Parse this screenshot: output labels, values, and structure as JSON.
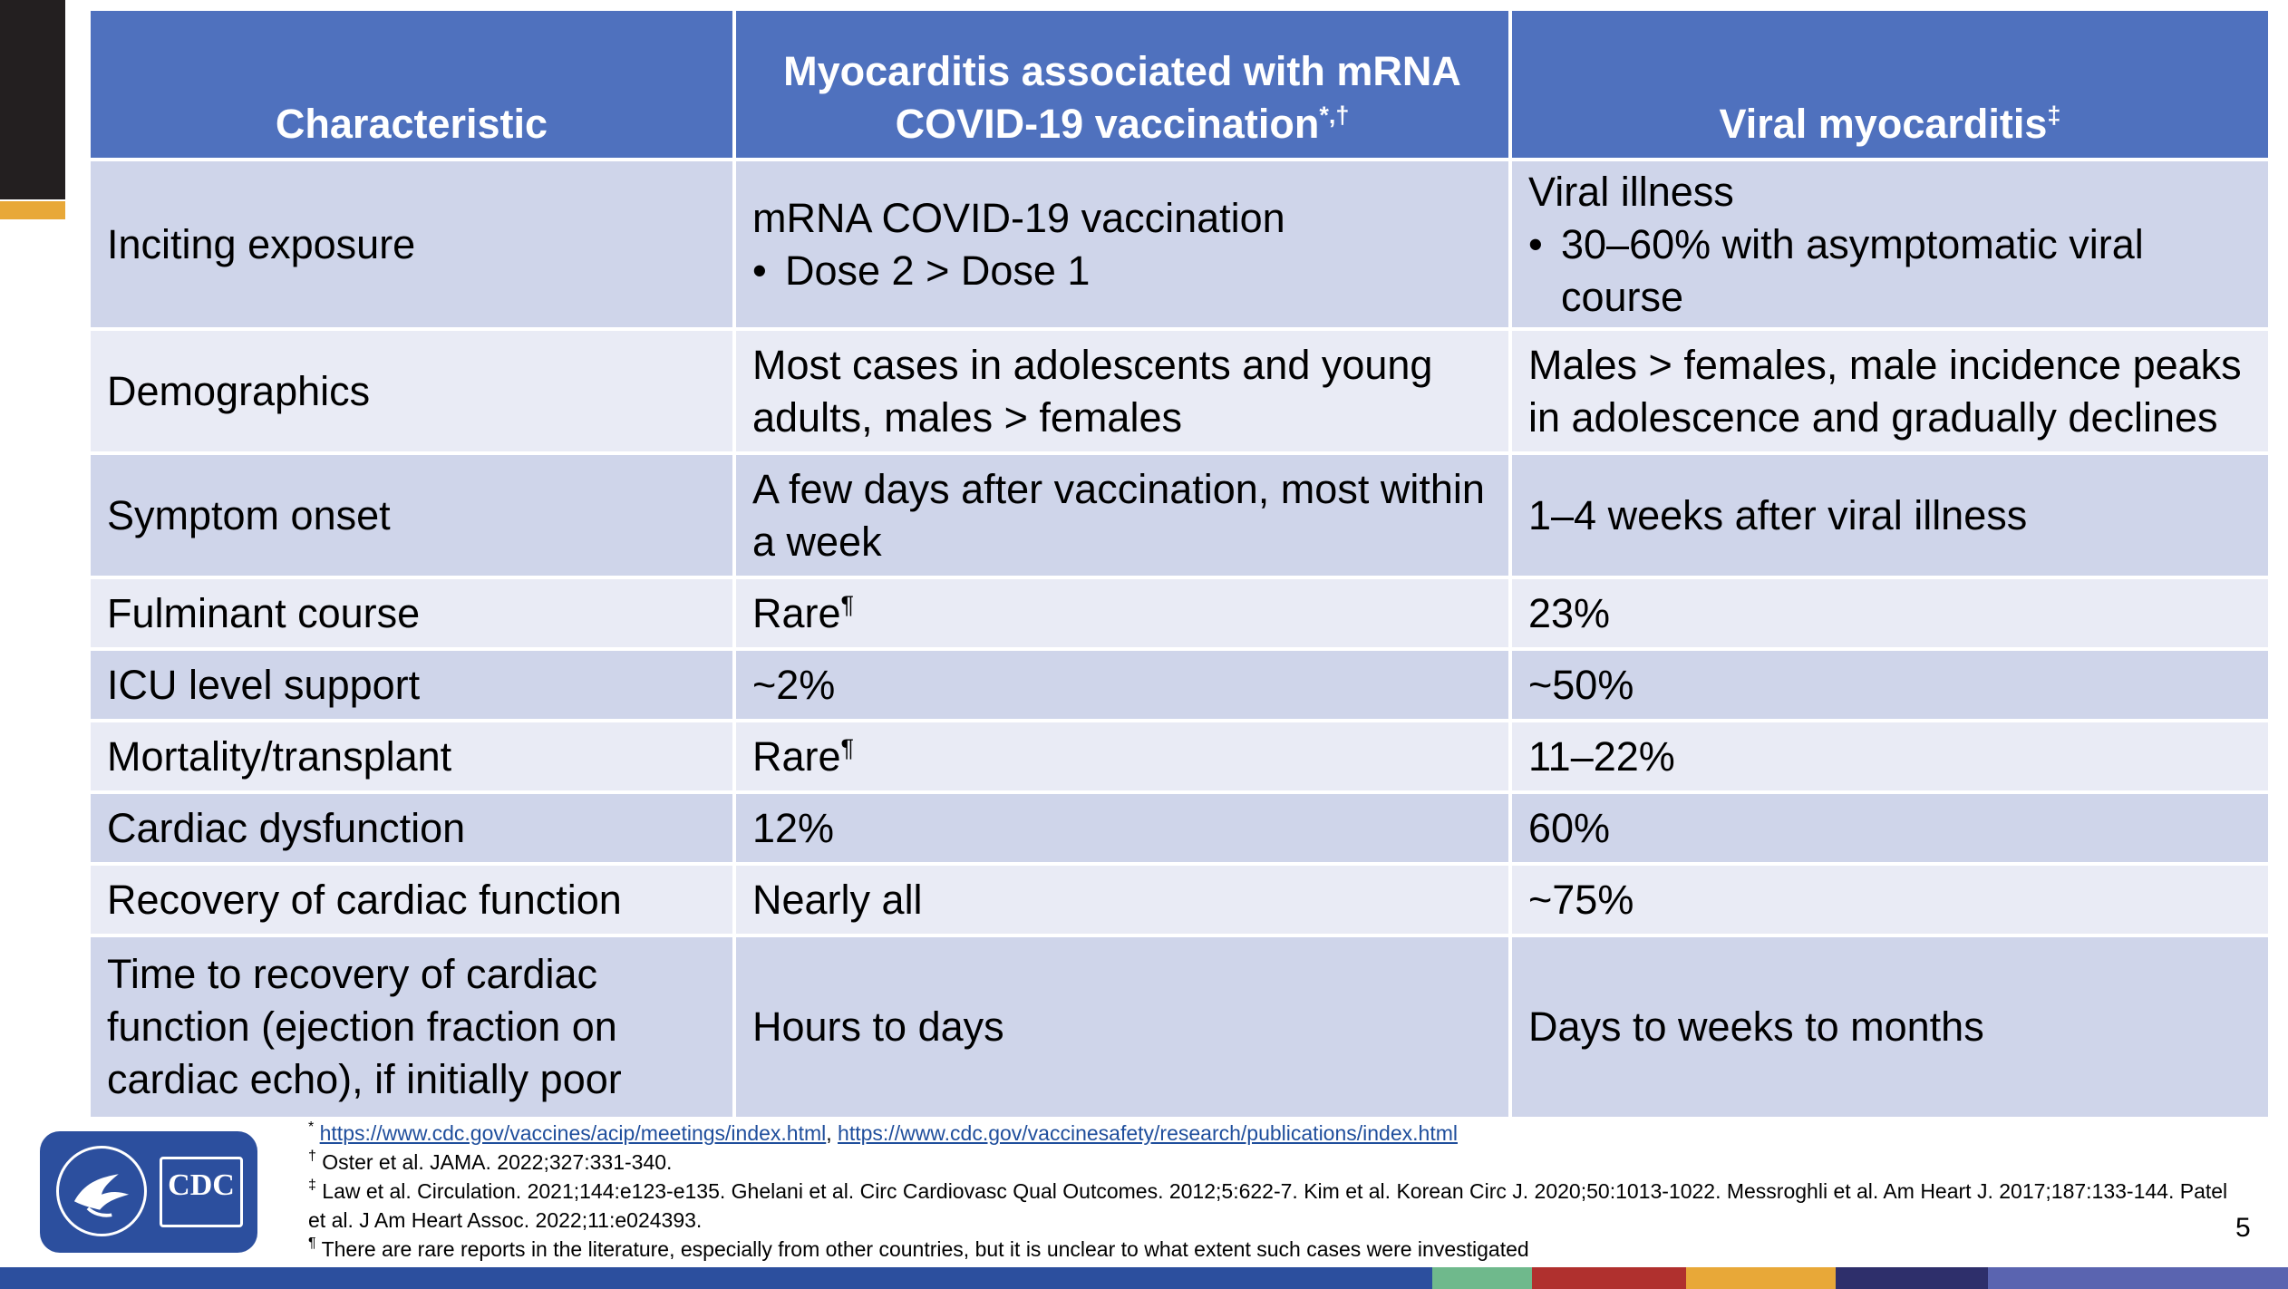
{
  "table": {
    "headers": {
      "col1": "Characteristic",
      "col2": "Myocarditis associated with mRNA COVID-19 vaccination",
      "col2_sup": "*,†",
      "col3": "Viral myocarditis",
      "col3_sup": "‡"
    },
    "rows": {
      "inciting": {
        "label": "Inciting exposure",
        "vaccine_line": "mRNA COVID-19 vaccination",
        "vaccine_bullet": "Dose 2 > Dose 1",
        "viral_line": "Viral illness",
        "viral_bullet": "30–60% with asymptomatic viral course"
      },
      "demographics": {
        "label": "Demographics",
        "vaccine": "Most cases in adolescents and young adults, males > females",
        "viral": "Males > females, male incidence peaks in adolescence and gradually declines"
      },
      "onset": {
        "label": "Symptom onset",
        "vaccine": "A few days after vaccination, most within a week",
        "viral": "1–4 weeks after viral illness"
      },
      "fulminant": {
        "label": "Fulminant course",
        "vaccine": "Rare",
        "vaccine_sup": "¶",
        "viral": "23%"
      },
      "icu": {
        "label": "ICU level support",
        "vaccine": "~2%",
        "viral": "~50%"
      },
      "mortality": {
        "label": "Mortality/transplant",
        "vaccine": "Rare",
        "vaccine_sup": "¶",
        "viral": "11–22%"
      },
      "dysfunction": {
        "label": "Cardiac dysfunction",
        "vaccine": "12%",
        "viral": "60%"
      },
      "recovery": {
        "label": "Recovery of cardiac function",
        "vaccine": "Nearly all",
        "viral": "~75%"
      },
      "time_recovery": {
        "label": "Time to recovery of cardiac function (ejection fraction on cardiac echo), if initially poor",
        "vaccine": "Hours to days",
        "viral": "Days to weeks to months"
      }
    }
  },
  "footnotes": {
    "fn1_symbol": "*",
    "fn1_link1": "https://www.cdc.gov/vaccines/acip/meetings/index.html",
    "fn1_sep": ",",
    "fn1_link2": "https://www.cdc.gov/vaccinesafety/research/publications/index.html",
    "fn2_symbol": "†",
    "fn2_text": "Oster et al. JAMA. 2022;327:331-340.",
    "fn3_symbol": "‡",
    "fn3_text": "Law et al. Circulation. 2021;144:e123-e135. Ghelani et al. Circ Cardiovasc Qual Outcomes. 2012;5:622-7. Kim et al. Korean Circ J. 2020;50:1013-1022. Messroghli et al. Am Heart J. 2017;187:133-144. Patel et al. J Am Heart Assoc. 2022;11:e024393.",
    "fn4_symbol": "¶",
    "fn4_text": "There are rare reports in the literature, especially from other countries, but it is unclear to what extent such cases were investigated"
  },
  "logo": {
    "text": "CDC",
    "icon": "hhs-eagle-seal-icon"
  },
  "page_number": "5",
  "colors": {
    "header_blue": "#4f71be",
    "row_dark": "#cfd5ea",
    "row_light": "#e9ebf5",
    "bottom_strip": [
      "#2c4f9e",
      "#6fb98c",
      "#b0302e",
      "#e8a838",
      "#2e2f6b",
      "#5a64b0"
    ]
  }
}
